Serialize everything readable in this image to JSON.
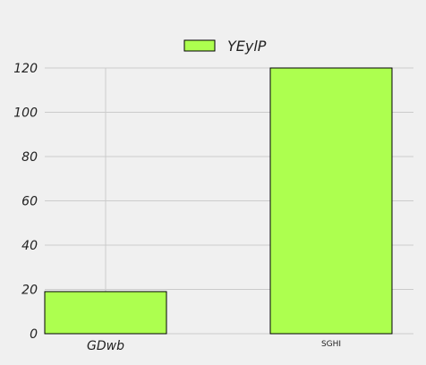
{
  "chart_data": {
    "type": "bar",
    "categories": [
      "GDwb",
      "SGHI"
    ],
    "series": [
      {
        "name": "YEylP",
        "values": [
          19,
          120
        ]
      }
    ],
    "ylim": [
      0,
      120
    ],
    "yticks": [
      "0",
      "20",
      "40",
      "60",
      "80",
      "100",
      "120"
    ],
    "grid": true,
    "legend": "top-center",
    "colors": {
      "bar": "#adff4f",
      "bar_edge": "#000000",
      "grid": "#cbcbcb",
      "background": "#f0f0f0"
    }
  }
}
